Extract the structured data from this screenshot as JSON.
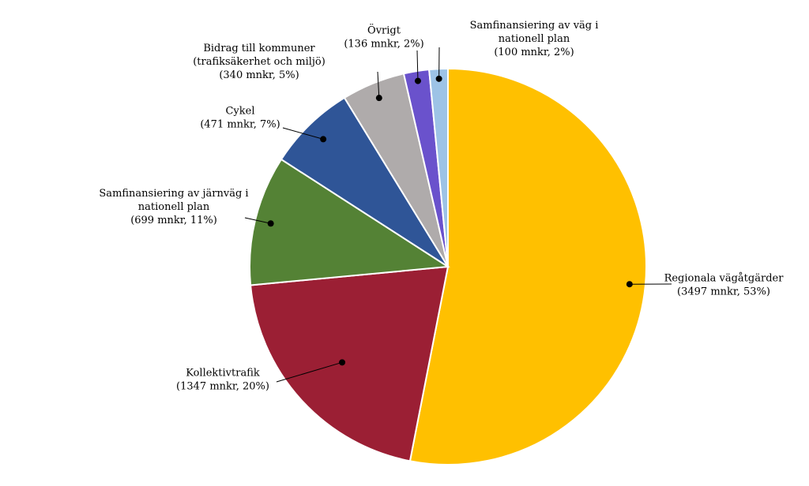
{
  "chart_data": {
    "type": "pie",
    "title": "",
    "unit": "mnkr",
    "slices": [
      {
        "name": "Regionala vägåtgärder",
        "lines": [
          "Regionala vägåtgärder",
          "(3497 mnkr, 53%)"
        ],
        "value": 3497,
        "percent": 53,
        "color": "#FFC000"
      },
      {
        "name": "Kollektivtrafik",
        "lines": [
          "Kollektivtrafik",
          "(1347 mnkr, 20%)"
        ],
        "value": 1347,
        "percent": 20,
        "color": "#9B1F34"
      },
      {
        "name": "Samfinansiering av järnväg i nationell plan",
        "lines": [
          "Samfinansiering av järnväg i",
          "nationell plan",
          "(699 mnkr, 11%)"
        ],
        "value": 699,
        "percent": 11,
        "color": "#548235"
      },
      {
        "name": "Cykel",
        "lines": [
          "Cykel",
          "(471 mnkr, 7%)"
        ],
        "value": 471,
        "percent": 7,
        "color": "#2F5597"
      },
      {
        "name": "Bidrag till kommuner (trafiksäkerhet och miljö)",
        "lines": [
          "Bidrag till kommuner",
          "(trafiksäkerhet och miljö)",
          "(340 mnkr, 5%)"
        ],
        "value": 340,
        "percent": 5,
        "color": "#AFABAB"
      },
      {
        "name": "Övrigt",
        "lines": [
          "Övrigt",
          "(136 mnkr, 2%)"
        ],
        "value": 136,
        "percent": 2,
        "color": "#6A52CC"
      },
      {
        "name": "Samfinansiering av väg i nationell plan",
        "lines": [
          "Samfinansiering av väg i",
          "nationell plan",
          "(100 mnkr, 2%)"
        ],
        "value": 100,
        "percent": 2,
        "color": "#9DC3E6"
      }
    ]
  }
}
